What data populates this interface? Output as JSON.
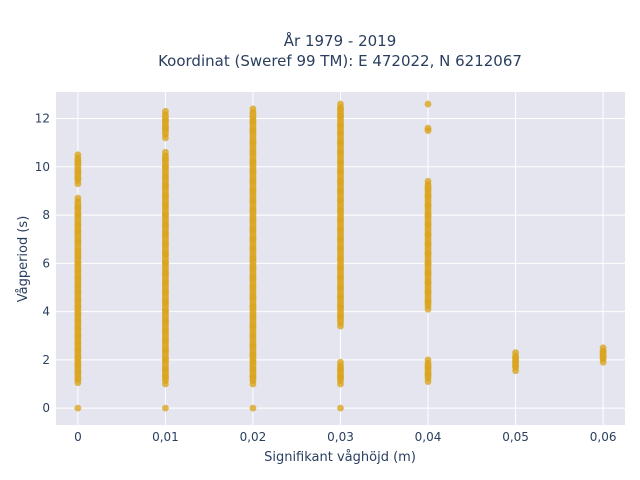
{
  "chart_data": {
    "type": "scatter",
    "title": [
      "År 1979 - 2019",
      "Koordinat (Sweref 99 TM): E 472022, N 6212067"
    ],
    "xlabel": "Signifikant våghöjd (m)",
    "ylabel": "Vågperiod (s)",
    "xlim": [
      -0.0025,
      0.0625
    ],
    "ylim": [
      -0.7,
      13.1
    ],
    "x_ticks": [
      0,
      0.01,
      0.02,
      0.03,
      0.04,
      0.05,
      0.06
    ],
    "x_tick_labels": [
      "0",
      "0,01",
      "0,02",
      "0,03",
      "0,04",
      "0,05",
      "0,06"
    ],
    "y_ticks": [
      0,
      2,
      4,
      6,
      8,
      10,
      12
    ],
    "y_tick_labels": [
      "0",
      "2",
      "4",
      "6",
      "8",
      "10",
      "12"
    ],
    "grid": true,
    "background": "#e5e5f0",
    "gridcolor": "#ffffff",
    "marker_color": "#daa520",
    "series": [
      {
        "x": 0,
        "points": [
          0,
          1.05,
          1.2,
          1.5,
          1.8,
          2.1,
          2.4,
          2.7,
          3.0,
          3.3,
          3.6,
          3.9,
          4.2,
          4.5,
          4.8,
          5.1,
          5.4,
          5.7,
          6.0,
          6.3,
          6.5,
          6.9,
          7.3,
          7.6,
          8.0,
          8.3,
          8.7,
          9.3,
          9.5,
          9.8,
          10.2,
          10.5
        ]
      },
      {
        "x": 0.01,
        "points": [
          0,
          1.0,
          1.3,
          1.6,
          2.0,
          2.4,
          2.8,
          3.2,
          3.6,
          4.0,
          4.4,
          4.8,
          5.2,
          5.6,
          6.0,
          6.4,
          6.8,
          7.2,
          7.6,
          8.0,
          8.4,
          8.8,
          9.2,
          9.6,
          10.0,
          10.3,
          10.6,
          11.2,
          11.6,
          11.9,
          12.3
        ]
      },
      {
        "x": 0.02,
        "points": [
          0,
          1.0,
          1.3,
          1.6,
          1.9,
          2.2,
          2.6,
          3.0,
          3.4,
          3.8,
          4.2,
          4.6,
          5.0,
          5.4,
          5.8,
          6.2,
          6.6,
          7.0,
          7.4,
          7.8,
          8.2,
          8.6,
          9.0,
          9.4,
          9.8,
          10.2,
          10.6,
          11.0,
          11.5,
          11.9,
          12.4
        ]
      },
      {
        "x": 0.03,
        "points": [
          0,
          1.0,
          1.3,
          1.6,
          1.9,
          3.4,
          3.8,
          4.2,
          4.6,
          5.0,
          5.4,
          5.8,
          6.2,
          6.6,
          7.0,
          7.4,
          7.8,
          8.2,
          8.6,
          9.0,
          9.4,
          9.8,
          10.2,
          10.6,
          11.0,
          11.4,
          11.7,
          12.1,
          12.4,
          12.6
        ]
      },
      {
        "x": 0.04,
        "points": [
          1.1,
          1.4,
          1.7,
          2.0,
          4.1,
          4.4,
          4.8,
          5.2,
          5.6,
          6.0,
          6.4,
          6.8,
          7.2,
          7.6,
          8.0,
          8.4,
          8.8,
          9.1,
          9.4,
          11.5,
          11.6,
          12.6
        ]
      },
      {
        "x": 0.05,
        "points": [
          1.55,
          1.75,
          1.95,
          2.1,
          2.3
        ]
      },
      {
        "x": 0.06,
        "points": [
          1.9,
          2.05,
          2.2,
          2.35,
          2.5
        ]
      }
    ]
  }
}
